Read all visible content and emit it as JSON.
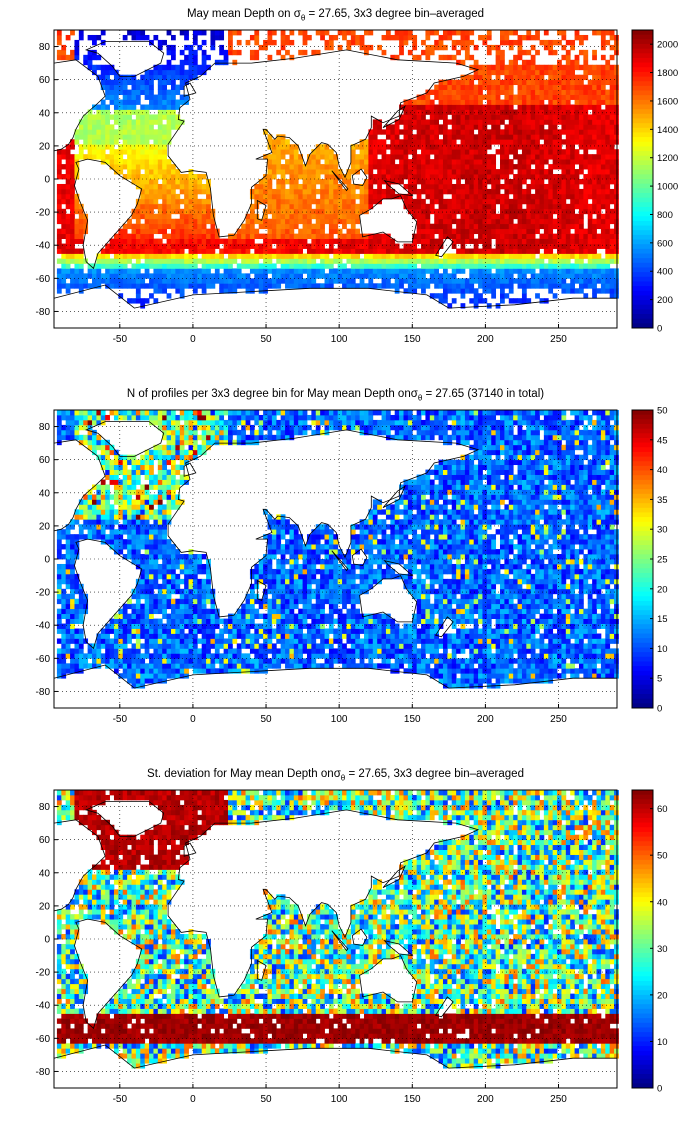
{
  "chart_data": [
    {
      "type": "heatmap",
      "title_parts": [
        "May mean Depth on ",
        "σ",
        "θ",
        " = 27.65, 3x3 degree bin–averaged"
      ],
      "field": "depth",
      "x_ticks": [
        "-50",
        "0",
        "50",
        "100",
        "150",
        "200",
        "250"
      ],
      "x_tick_values": [
        -50,
        0,
        50,
        100,
        150,
        200,
        250
      ],
      "y_ticks": [
        "80",
        "60",
        "40",
        "20",
        "0",
        "-20",
        "-40",
        "-60",
        "-80"
      ],
      "y_tick_values": [
        80,
        60,
        40,
        20,
        0,
        -20,
        -40,
        -60,
        -80
      ],
      "xlim": [
        -95,
        290
      ],
      "ylim": [
        -90,
        90
      ],
      "grid": true,
      "colorbar": {
        "min": 0,
        "max": 2100,
        "ticks": [
          "2000",
          "1800",
          "1600",
          "1400",
          "1200",
          "1000",
          "800",
          "600",
          "400",
          "200",
          "0"
        ],
        "tick_values": [
          2000,
          1800,
          1600,
          1400,
          1200,
          1000,
          800,
          600,
          400,
          200,
          0
        ]
      }
    },
    {
      "type": "heatmap",
      "title_parts": [
        "N of profiles per 3x3 degree bin for May mean Depth on",
        "σ",
        "θ",
        " = 27.65 (37140 in total)"
      ],
      "field": "count",
      "x_ticks": [
        "-50",
        "0",
        "50",
        "100",
        "150",
        "200",
        "250"
      ],
      "x_tick_values": [
        -50,
        0,
        50,
        100,
        150,
        200,
        250
      ],
      "y_ticks": [
        "80",
        "60",
        "40",
        "20",
        "0",
        "-20",
        "-40",
        "-60",
        "-80"
      ],
      "y_tick_values": [
        80,
        60,
        40,
        20,
        0,
        -20,
        -40,
        -60,
        -80
      ],
      "xlim": [
        -95,
        290
      ],
      "ylim": [
        -90,
        90
      ],
      "grid": true,
      "colorbar": {
        "min": 0,
        "max": 50,
        "ticks": [
          "50",
          "45",
          "40",
          "35",
          "30",
          "25",
          "20",
          "15",
          "10",
          "5",
          "0"
        ],
        "tick_values": [
          50,
          45,
          40,
          35,
          30,
          25,
          20,
          15,
          10,
          5,
          0
        ]
      }
    },
    {
      "type": "heatmap",
      "title_parts": [
        "St. deviation for May mean Depth on",
        "σ",
        "θ",
        " = 27.65, 3x3 degree bin–averaged"
      ],
      "field": "std",
      "x_ticks": [
        "-50",
        "0",
        "50",
        "100",
        "150",
        "200",
        "250"
      ],
      "x_tick_values": [
        -50,
        0,
        50,
        100,
        150,
        200,
        250
      ],
      "y_ticks": [
        "80",
        "60",
        "40",
        "20",
        "0",
        "-20",
        "-40",
        "-60",
        "-80"
      ],
      "y_tick_values": [
        80,
        60,
        40,
        20,
        0,
        -20,
        -40,
        -60,
        -80
      ],
      "xlim": [
        -95,
        290
      ],
      "ylim": [
        -90,
        90
      ],
      "grid": true,
      "colorbar": {
        "min": 0,
        "max": 64,
        "ticks": [
          "60",
          "50",
          "40",
          "30",
          "20",
          "10",
          "0"
        ],
        "tick_values": [
          60,
          50,
          40,
          30,
          20,
          10,
          0
        ]
      }
    }
  ]
}
